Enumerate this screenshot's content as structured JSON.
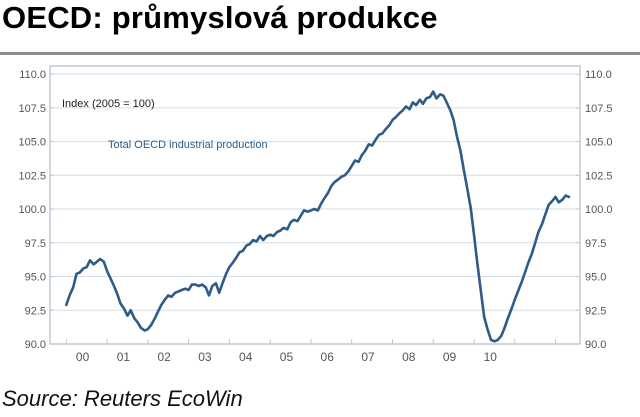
{
  "header": {
    "title": "OECD: průmyslová produkce"
  },
  "footer": {
    "source": "Source: Reuters EcoWin"
  },
  "chart_data": {
    "type": "line",
    "unit_label": "Index (2005 = 100)",
    "series": [
      {
        "name": "Total OECD industrial production",
        "color": "#2e5b87",
        "points": [
          [
            2000.0,
            92.9
          ],
          [
            2000.08,
            93.6
          ],
          [
            2000.17,
            94.2
          ],
          [
            2000.25,
            95.2
          ],
          [
            2000.33,
            95.3
          ],
          [
            2000.42,
            95.6
          ],
          [
            2000.5,
            95.7
          ],
          [
            2000.58,
            96.2
          ],
          [
            2000.67,
            95.9
          ],
          [
            2000.75,
            96.1
          ],
          [
            2000.83,
            96.3
          ],
          [
            2000.92,
            96.1
          ],
          [
            2001.0,
            95.4
          ],
          [
            2001.08,
            94.9
          ],
          [
            2001.17,
            94.3
          ],
          [
            2001.25,
            93.7
          ],
          [
            2001.33,
            93.0
          ],
          [
            2001.42,
            92.6
          ],
          [
            2001.5,
            92.1
          ],
          [
            2001.58,
            92.5
          ],
          [
            2001.67,
            91.9
          ],
          [
            2001.75,
            91.6
          ],
          [
            2001.83,
            91.2
          ],
          [
            2001.92,
            91.0
          ],
          [
            2002.0,
            91.1
          ],
          [
            2002.08,
            91.4
          ],
          [
            2002.17,
            91.9
          ],
          [
            2002.25,
            92.4
          ],
          [
            2002.33,
            92.9
          ],
          [
            2002.42,
            93.3
          ],
          [
            2002.5,
            93.6
          ],
          [
            2002.58,
            93.5
          ],
          [
            2002.67,
            93.8
          ],
          [
            2002.75,
            93.9
          ],
          [
            2002.83,
            94.0
          ],
          [
            2002.92,
            94.1
          ],
          [
            2003.0,
            94.0
          ],
          [
            2003.08,
            94.4
          ],
          [
            2003.17,
            94.4
          ],
          [
            2003.25,
            94.3
          ],
          [
            2003.33,
            94.4
          ],
          [
            2003.42,
            94.2
          ],
          [
            2003.5,
            93.6
          ],
          [
            2003.58,
            94.3
          ],
          [
            2003.67,
            94.5
          ],
          [
            2003.75,
            93.8
          ],
          [
            2003.83,
            94.5
          ],
          [
            2003.92,
            95.2
          ],
          [
            2004.0,
            95.7
          ],
          [
            2004.08,
            96.0
          ],
          [
            2004.17,
            96.4
          ],
          [
            2004.25,
            96.8
          ],
          [
            2004.33,
            96.9
          ],
          [
            2004.42,
            97.3
          ],
          [
            2004.5,
            97.4
          ],
          [
            2004.58,
            97.7
          ],
          [
            2004.67,
            97.6
          ],
          [
            2004.75,
            98.0
          ],
          [
            2004.83,
            97.7
          ],
          [
            2004.92,
            98.0
          ],
          [
            2005.0,
            98.1
          ],
          [
            2005.08,
            98.0
          ],
          [
            2005.17,
            98.3
          ],
          [
            2005.25,
            98.4
          ],
          [
            2005.33,
            98.6
          ],
          [
            2005.42,
            98.5
          ],
          [
            2005.5,
            99.0
          ],
          [
            2005.58,
            99.2
          ],
          [
            2005.67,
            99.1
          ],
          [
            2005.75,
            99.5
          ],
          [
            2005.83,
            99.9
          ],
          [
            2005.92,
            99.8
          ],
          [
            2006.0,
            99.9
          ],
          [
            2006.08,
            100.0
          ],
          [
            2006.17,
            99.9
          ],
          [
            2006.25,
            100.4
          ],
          [
            2006.33,
            100.8
          ],
          [
            2006.42,
            101.2
          ],
          [
            2006.5,
            101.7
          ],
          [
            2006.58,
            102.0
          ],
          [
            2006.67,
            102.2
          ],
          [
            2006.75,
            102.4
          ],
          [
            2006.83,
            102.5
          ],
          [
            2006.92,
            102.8
          ],
          [
            2007.0,
            103.2
          ],
          [
            2007.08,
            103.6
          ],
          [
            2007.17,
            103.5
          ],
          [
            2007.25,
            104.0
          ],
          [
            2007.33,
            104.3
          ],
          [
            2007.42,
            104.8
          ],
          [
            2007.5,
            104.7
          ],
          [
            2007.58,
            105.1
          ],
          [
            2007.67,
            105.5
          ],
          [
            2007.75,
            105.6
          ],
          [
            2007.83,
            105.9
          ],
          [
            2007.92,
            106.2
          ],
          [
            2008.0,
            106.6
          ],
          [
            2008.08,
            106.8
          ],
          [
            2008.17,
            107.1
          ],
          [
            2008.25,
            107.3
          ],
          [
            2008.33,
            107.6
          ],
          [
            2008.42,
            107.4
          ],
          [
            2008.5,
            107.9
          ],
          [
            2008.58,
            107.7
          ],
          [
            2008.67,
            108.1
          ],
          [
            2008.75,
            107.8
          ],
          [
            2008.83,
            108.2
          ],
          [
            2008.92,
            108.3
          ],
          [
            2009.0,
            108.7
          ],
          [
            2009.08,
            108.2
          ],
          [
            2009.17,
            108.5
          ],
          [
            2009.25,
            108.4
          ],
          [
            2009.33,
            107.9
          ],
          [
            2009.42,
            107.3
          ],
          [
            2009.5,
            106.6
          ],
          [
            2009.58,
            105.4
          ],
          [
            2009.67,
            104.3
          ],
          [
            2009.75,
            102.9
          ],
          [
            2009.83,
            101.6
          ],
          [
            2009.92,
            100.1
          ],
          [
            2010.0,
            98.1
          ],
          [
            2010.08,
            96.0
          ],
          [
            2010.17,
            93.9
          ],
          [
            2010.25,
            92.0
          ],
          [
            2010.33,
            91.1
          ],
          [
            2010.42,
            90.3
          ],
          [
            2010.5,
            90.2
          ],
          [
            2010.58,
            90.3
          ],
          [
            2010.67,
            90.6
          ],
          [
            2010.75,
            91.2
          ],
          [
            2010.83,
            91.9
          ],
          [
            2010.92,
            92.6
          ],
          [
            2011.0,
            93.3
          ],
          [
            2011.08,
            93.9
          ],
          [
            2011.17,
            94.6
          ],
          [
            2011.25,
            95.3
          ],
          [
            2011.33,
            96.0
          ],
          [
            2011.42,
            96.7
          ],
          [
            2011.5,
            97.5
          ],
          [
            2011.58,
            98.3
          ],
          [
            2011.67,
            98.9
          ],
          [
            2011.75,
            99.6
          ],
          [
            2011.83,
            100.3
          ],
          [
            2011.92,
            100.6
          ],
          [
            2012.0,
            100.9
          ],
          [
            2012.08,
            100.5
          ],
          [
            2012.17,
            100.7
          ],
          [
            2012.25,
            101.0
          ],
          [
            2012.33,
            100.9
          ]
        ]
      }
    ],
    "xlim": [
      1999.6,
      2012.6
    ],
    "ylim": [
      90.0,
      110.6
    ],
    "x_ticks": [
      {
        "label": "00",
        "x": 2000.4
      },
      {
        "label": "01",
        "x": 2001.4
      },
      {
        "label": "02",
        "x": 2002.4
      },
      {
        "label": "03",
        "x": 2003.4
      },
      {
        "label": "04",
        "x": 2004.4
      },
      {
        "label": "05",
        "x": 2005.4
      },
      {
        "label": "06",
        "x": 2006.4
      },
      {
        "label": "07",
        "x": 2007.4
      },
      {
        "label": "08",
        "x": 2008.4
      },
      {
        "label": "09",
        "x": 2009.4
      },
      {
        "label": "10",
        "x": 2010.4
      }
    ],
    "y_ticks": [
      {
        "label": "90.0",
        "value": 90.0
      },
      {
        "label": "92.5",
        "value": 92.5
      },
      {
        "label": "95.0",
        "value": 95.0
      },
      {
        "label": "97.5",
        "value": 97.5
      },
      {
        "label": "100.0",
        "value": 100.0
      },
      {
        "label": "102.5",
        "value": 102.5
      },
      {
        "label": "105.0",
        "value": 105.0
      },
      {
        "label": "107.5",
        "value": 107.5
      },
      {
        "label": "110.0",
        "value": 110.0
      }
    ],
    "grid": true,
    "dual_y_axis": true,
    "frame_color": "#b9c6d2",
    "grid_color": "#d6dee6",
    "tick_text_color": "#555555"
  }
}
